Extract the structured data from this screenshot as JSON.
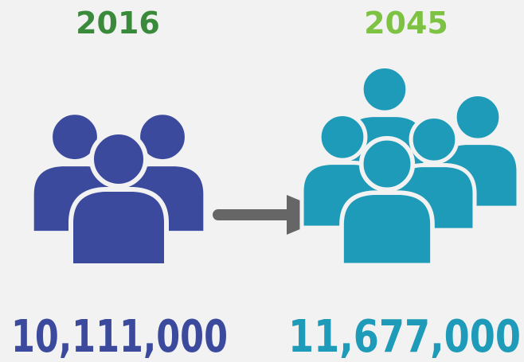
{
  "before": {
    "year": "2016",
    "population": "10,111,000"
  },
  "after": {
    "year": "2045",
    "population": "11,677,000"
  }
}
